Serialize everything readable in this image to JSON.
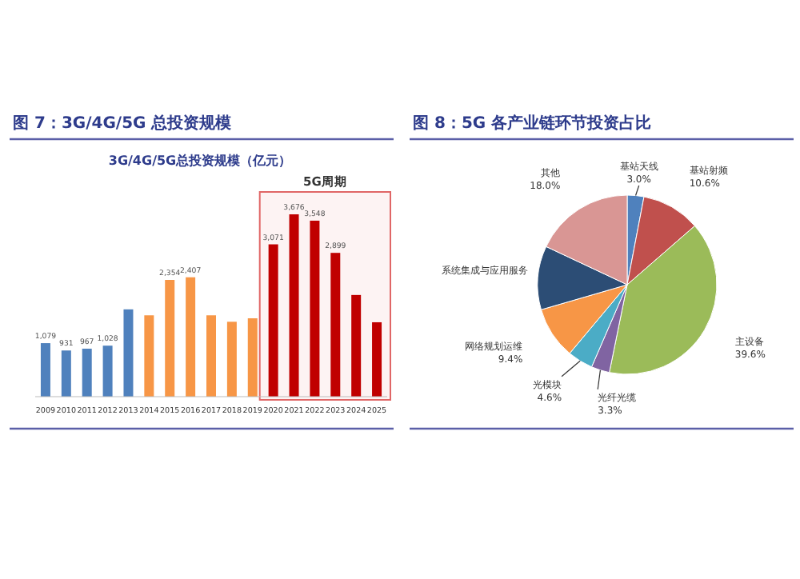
{
  "chart_data": [
    {
      "type": "bar",
      "title": "图 7：3G/4G/5G 总投资规模",
      "subtitle": "3G/4G/5G总投资规模（亿元）",
      "categories": [
        "2009",
        "2010",
        "2011",
        "2012",
        "2013",
        "2014",
        "2015",
        "2016",
        "2017",
        "2018",
        "2019",
        "2020",
        "2021",
        "2022",
        "2023",
        "2024",
        "2025"
      ],
      "values": [
        1079,
        931,
        967,
        1028,
        1760,
        1640,
        2354,
        2407,
        1640,
        1510,
        1580,
        3071,
        3676,
        3548,
        2899,
        2050,
        1500
      ],
      "value_labels": [
        "1,079",
        "931",
        "967",
        "1,028",
        null,
        null,
        "2,354",
        "2,407",
        null,
        null,
        null,
        "3,071",
        "3,676",
        "3,548",
        "2,899",
        null,
        null
      ],
      "colors": [
        "#4f81bd",
        "#4f81bd",
        "#4f81bd",
        "#4f81bd",
        "#4f81bd",
        "#f79646",
        "#f79646",
        "#f79646",
        "#f79646",
        "#f79646",
        "#f79646",
        "#c00000",
        "#c00000",
        "#c00000",
        "#c00000",
        "#c00000",
        "#c00000"
      ],
      "bands": [
        {
          "axis": "x",
          "from": "2020",
          "to": "2025",
          "label": "5G周期",
          "color": "#e06666"
        }
      ]
    },
    {
      "type": "pie",
      "title": "图 8：5G 各产业链环节投资占比",
      "categories": [
        "基站天线",
        "基站射频",
        "主设备",
        "光纤光缆",
        "光模块",
        "网络规划运维",
        "系统集成与应用服务",
        "其他"
      ],
      "values": [
        3.0,
        10.6,
        39.6,
        3.3,
        4.6,
        9.4,
        11.5,
        18.0
      ],
      "value_labels": [
        "3.0%",
        "10.6%",
        "39.6%",
        "3.3%",
        "4.6%",
        "9.4%",
        null,
        "18.0%"
      ],
      "colors": [
        "#4f81bd",
        "#c0504d",
        "#9bbb59",
        "#8064a2",
        "#4bacc6",
        "#f79646",
        "#2c4d75",
        "#d99694"
      ]
    }
  ]
}
